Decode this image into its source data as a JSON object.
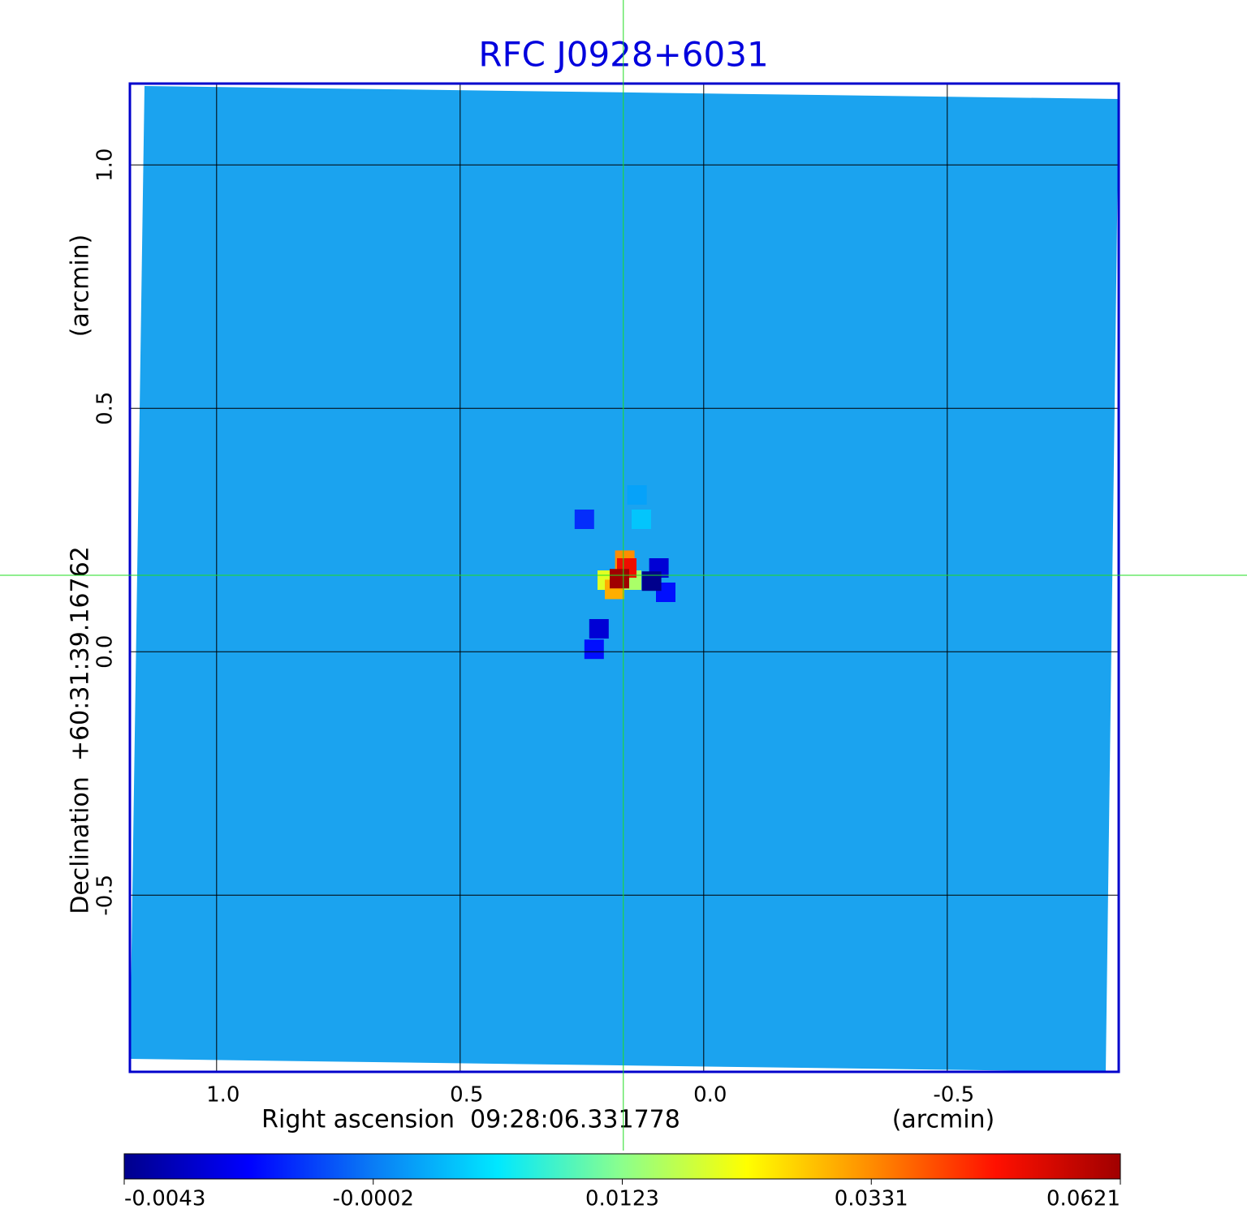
{
  "chart_data": {
    "type": "image",
    "title": "RFC J0928+6031",
    "x_label": "Right ascension  09:28:06.331778",
    "x_unit": "(arcmin)",
    "y_label": "Declination  +60:31:39.16762",
    "y_unit": "(arcmin)",
    "xlim": [
      1.178,
      -0.852
    ],
    "ylim": [
      -0.863,
      1.167
    ],
    "xticks": [
      {
        "value": 1,
        "label": "1.0"
      },
      0.5,
      {
        "value": 0,
        "label": "0.0"
      },
      -0.5
    ],
    "yticks": [
      {
        "value": 1,
        "label": "1.0"
      },
      0.5,
      {
        "value": 0,
        "label": "0.0"
      },
      -0.5
    ],
    "grid": true,
    "crosshair": {
      "x": 0.165,
      "y": 0.157,
      "color": "#22dd22"
    },
    "colorbar": {
      "ticks": [
        -0.0043,
        -0.0002,
        0.0123,
        0.0331,
        0.0621
      ],
      "colormap": [
        "#00008c",
        "#0000ff",
        "#0a7cf5",
        "#00e8ff",
        "#8cff8c",
        "#ffff00",
        "#ff8c00",
        "#ff1000",
        "#a00000"
      ]
    },
    "pixels": [
      {
        "x": 0.245,
        "y": 0.272,
        "value": -0.0015
      },
      {
        "x": 0.137,
        "y": 0.322,
        "value": 0.002
      },
      {
        "x": 0.128,
        "y": 0.272,
        "value": 0.004
      },
      {
        "x": 0.225,
        "y": 0.005,
        "value": -0.002
      },
      {
        "x": 0.215,
        "y": 0.047,
        "value": -0.003
      },
      {
        "x": 0.078,
        "y": 0.122,
        "value": -0.002
      },
      {
        "x": 0.092,
        "y": 0.172,
        "value": -0.003
      },
      {
        "x": 0.107,
        "y": 0.145,
        "value": -0.0043
      },
      {
        "x": 0.148,
        "y": 0.147,
        "value": 0.015
      },
      {
        "x": 0.198,
        "y": 0.147,
        "value": 0.02
      },
      {
        "x": 0.183,
        "y": 0.128,
        "value": 0.03
      },
      {
        "x": 0.162,
        "y": 0.188,
        "value": 0.033
      },
      {
        "x": 0.158,
        "y": 0.172,
        "value": 0.05
      },
      {
        "x": 0.173,
        "y": 0.15,
        "value": 0.0621
      }
    ]
  }
}
